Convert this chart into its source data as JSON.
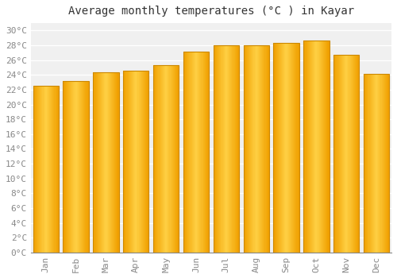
{
  "months": [
    "Jan",
    "Feb",
    "Mar",
    "Apr",
    "May",
    "Jun",
    "Jul",
    "Aug",
    "Sep",
    "Oct",
    "Nov",
    "Dec"
  ],
  "values": [
    22.5,
    23.2,
    24.3,
    24.6,
    25.3,
    27.1,
    28.0,
    28.0,
    28.3,
    28.6,
    26.7,
    24.1
  ],
  "bar_color_center": "#FFD044",
  "bar_color_edge": "#F0A000",
  "bar_edge_color": "#CC8800",
  "title": "Average monthly temperatures (°C ) in Kayar",
  "ylim": [
    0,
    31
  ],
  "ytick_step": 2,
  "background_color": "#ffffff",
  "plot_bg_color": "#f0f0f0",
  "grid_color": "#ffffff",
  "title_fontsize": 10,
  "tick_fontsize": 8,
  "title_font": "monospace",
  "tick_font": "monospace",
  "bar_width": 0.85
}
